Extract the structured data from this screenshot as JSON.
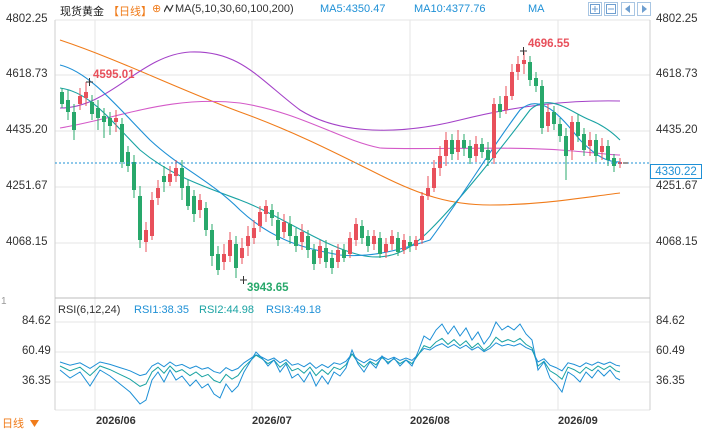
{
  "header": {
    "title": "现货黄金",
    "period": "【日线】",
    "gear_icon": "⊕",
    "ma_icon": "ma-wave-icon",
    "ma_params": "MA(5,10,30,60,100,200)",
    "ma5_label": "MA5:4350.47",
    "ma10_label": "MA10:4377.76",
    "ma_label": "MA"
  },
  "controls": [
    "zoom-in-icon",
    "zoom-out-icon",
    "scroll-left-icon",
    "scroll-right-icon"
  ],
  "price_axis": [
    "4802.25",
    "4618.73",
    "4435.20",
    "4251.67",
    "4068.15"
  ],
  "current_price": "4330.22",
  "annotations": {
    "high_left": "4595.01",
    "high_right": "4696.55",
    "low": "3943.65"
  },
  "rsi": {
    "label": "RSI(6,12,24)",
    "rsi1": "RSI1:38.35",
    "rsi2": "RSI2:44.98",
    "rsi3": "RSI3:49.18",
    "axis": [
      "84.62",
      "60.49",
      "36.35"
    ],
    "rsi_marker_label": "1"
  },
  "x_axis": [
    "2026/06",
    "2026/07",
    "2026/08",
    "2026/09"
  ],
  "footer": {
    "day_button": "日线",
    "day_icon": "triangle-down-icon"
  },
  "colors": {
    "up": "#e8505b",
    "down": "#28a86b",
    "ma_fast": "#1e90d6",
    "ma_teal": "#1aa3a3",
    "ma_orange": "#f07c1b",
    "ma_purple": "#a442c8",
    "ma_magenta": "#d45ac8",
    "accent": "#f07c1b"
  }
}
